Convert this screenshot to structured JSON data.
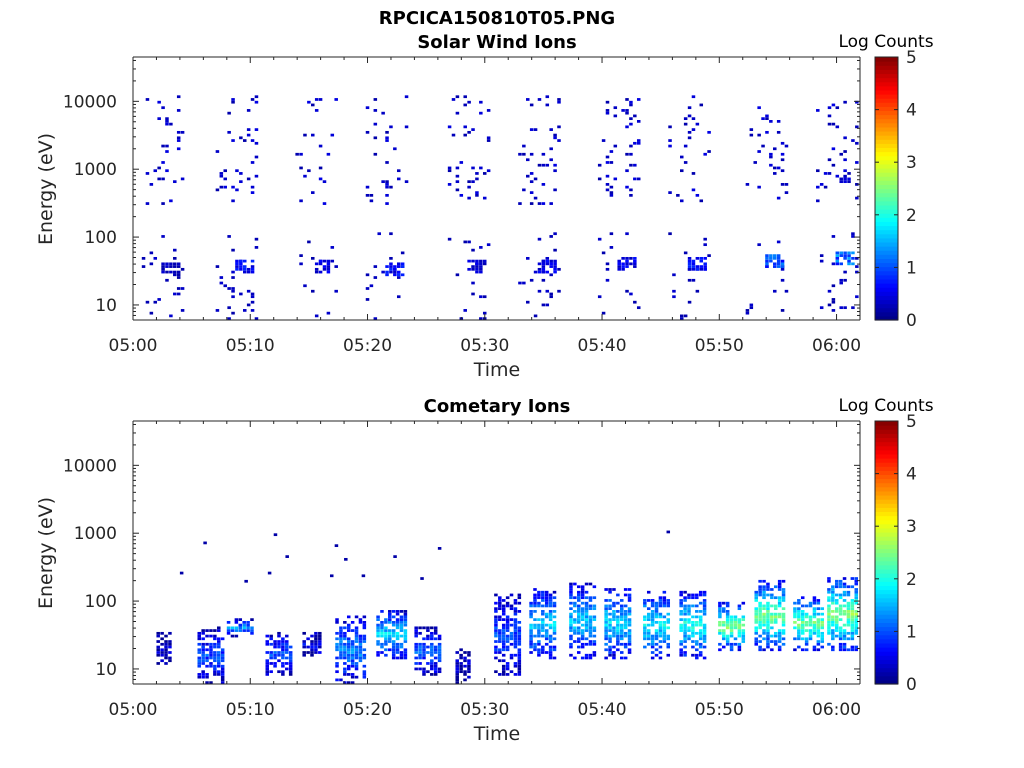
{
  "figure_title": "RPCICA150810T05.PNG",
  "chart_data": [
    {
      "type": "heatmap",
      "title": "Solar Wind Ions",
      "xlabel": "Time",
      "ylabel": "Energy (eV)",
      "x_ticks": [
        "05:00",
        "05:10",
        "05:20",
        "05:30",
        "05:40",
        "05:50",
        "06:00"
      ],
      "x_range_minutes": [
        0,
        62
      ],
      "y_scale": "log",
      "y_ticks": [
        {
          "value": 10,
          "label": "10"
        },
        {
          "value": 100,
          "label": "100"
        },
        {
          "value": 1000,
          "label": "1000"
        },
        {
          "value": 10000,
          "label": "10000"
        }
      ],
      "ylim": [
        6,
        45000
      ],
      "colorbar": {
        "label": "Log Counts",
        "range": [
          0,
          5
        ],
        "ticks": [
          "0",
          "1",
          "2",
          "3",
          "4",
          "5"
        ],
        "colormap": "jet"
      },
      "bursts": [
        {
          "t": 2.5,
          "w": 3.5,
          "e_lo": 300,
          "e_hi": 12000,
          "scatter_level": 0.2,
          "low_e": 35,
          "low_level": 0.3
        },
        {
          "t": 8.8,
          "w": 3.5,
          "e_lo": 300,
          "e_hi": 12000,
          "scatter_level": 0.2,
          "low_e": 38,
          "low_level": 0.6
        },
        {
          "t": 15.6,
          "w": 3.5,
          "e_lo": 300,
          "e_hi": 12000,
          "scatter_level": 0.2,
          "low_e": 38,
          "low_level": 0.5
        },
        {
          "t": 21.6,
          "w": 3.5,
          "e_lo": 300,
          "e_hi": 12000,
          "scatter_level": 0.2,
          "low_e": 35,
          "low_level": 0.6
        },
        {
          "t": 28.6,
          "w": 3.5,
          "e_lo": 300,
          "e_hi": 12000,
          "scatter_level": 0.2,
          "low_e": 38,
          "low_level": 0.4
        },
        {
          "t": 34.6,
          "w": 3.5,
          "e_lo": 300,
          "e_hi": 12000,
          "scatter_level": 0.2,
          "low_e": 38,
          "low_level": 0.5
        },
        {
          "t": 41.4,
          "w": 3.5,
          "e_lo": 300,
          "e_hi": 12000,
          "scatter_level": 0.2,
          "low_e": 40,
          "low_level": 0.5
        },
        {
          "t": 47.4,
          "w": 3.5,
          "e_lo": 300,
          "e_hi": 12000,
          "scatter_level": 0.2,
          "low_e": 40,
          "low_level": 0.6
        },
        {
          "t": 54.0,
          "w": 3.5,
          "e_lo": 300,
          "e_hi": 8000,
          "scatter_level": 0.2,
          "low_e": 45,
          "low_level": 1.0
        },
        {
          "t": 60.0,
          "w": 3.5,
          "e_lo": 300,
          "e_hi": 10000,
          "scatter_level": 0.2,
          "low_e": 50,
          "low_level": 1.1
        }
      ]
    },
    {
      "type": "heatmap",
      "title": "Cometary Ions",
      "xlabel": "Time",
      "ylabel": "Energy (eV)",
      "x_ticks": [
        "05:00",
        "05:10",
        "05:20",
        "05:30",
        "05:40",
        "05:50",
        "06:00"
      ],
      "x_range_minutes": [
        0,
        62
      ],
      "y_scale": "log",
      "y_ticks": [
        {
          "value": 10,
          "label": "10"
        },
        {
          "value": 100,
          "label": "100"
        },
        {
          "value": 1000,
          "label": "1000"
        },
        {
          "value": 10000,
          "label": "10000"
        }
      ],
      "ylim": [
        6,
        45000
      ],
      "colorbar": {
        "label": "Log Counts",
        "range": [
          0,
          5
        ],
        "ticks": [
          "0",
          "1",
          "2",
          "3",
          "4",
          "5"
        ],
        "colormap": "jet"
      },
      "bursts": [
        {
          "t": 2.5,
          "w": 1.0,
          "e_lo": 12,
          "e_hi": 35,
          "level": 0.3
        },
        {
          "t": 6.5,
          "w": 2.0,
          "e_lo": 6,
          "e_hi": 40,
          "level": 0.9
        },
        {
          "t": 9.0,
          "w": 2.0,
          "e_lo": 30,
          "e_hi": 55,
          "level": 1.3
        },
        {
          "t": 12.4,
          "w": 2.2,
          "e_lo": 8,
          "e_hi": 35,
          "level": 0.9
        },
        {
          "t": 15.2,
          "w": 1.5,
          "e_lo": 15,
          "e_hi": 35,
          "level": 0.5
        },
        {
          "t": 18.5,
          "w": 2.5,
          "e_lo": 6,
          "e_hi": 60,
          "level": 1.2
        },
        {
          "t": 22.0,
          "w": 2.5,
          "e_lo": 15,
          "e_hi": 70,
          "level": 1.6
        },
        {
          "t": 25.0,
          "w": 2.0,
          "e_lo": 8,
          "e_hi": 40,
          "level": 1.0
        },
        {
          "t": 28.0,
          "w": 1.0,
          "e_lo": 6,
          "e_hi": 20,
          "level": 0.3
        },
        {
          "t": 31.8,
          "w": 2.0,
          "e_lo": 8,
          "e_hi": 120,
          "level": 0.9
        },
        {
          "t": 34.8,
          "w": 2.0,
          "e_lo": 15,
          "e_hi": 150,
          "level": 1.5
        },
        {
          "t": 38.2,
          "w": 2.0,
          "e_lo": 15,
          "e_hi": 180,
          "level": 1.5
        },
        {
          "t": 41.2,
          "w": 2.0,
          "e_lo": 15,
          "e_hi": 150,
          "level": 1.6
        },
        {
          "t": 44.5,
          "w": 2.0,
          "e_lo": 15,
          "e_hi": 140,
          "level": 1.7
        },
        {
          "t": 47.6,
          "w": 2.0,
          "e_lo": 15,
          "e_hi": 130,
          "level": 1.8
        },
        {
          "t": 51.0,
          "w": 2.2,
          "e_lo": 20,
          "e_hi": 90,
          "level": 2.3
        },
        {
          "t": 54.3,
          "w": 2.6,
          "e_lo": 20,
          "e_hi": 200,
          "level": 2.2
        },
        {
          "t": 57.5,
          "w": 2.4,
          "e_lo": 20,
          "e_hi": 110,
          "level": 2.2
        },
        {
          "t": 60.4,
          "w": 2.4,
          "e_lo": 20,
          "e_hi": 220,
          "level": 2.3
        }
      ],
      "isolated_points": [
        {
          "t": 4.0,
          "e": 270
        },
        {
          "t": 6.0,
          "e": 750
        },
        {
          "t": 9.5,
          "e": 190
        },
        {
          "t": 11.5,
          "e": 270
        },
        {
          "t": 12.0,
          "e": 950
        },
        {
          "t": 13.0,
          "e": 440
        },
        {
          "t": 17.2,
          "e": 640
        },
        {
          "t": 16.8,
          "e": 230
        },
        {
          "t": 18.0,
          "e": 400
        },
        {
          "t": 19.5,
          "e": 240
        },
        {
          "t": 22.2,
          "e": 440
        },
        {
          "t": 24.5,
          "e": 220
        },
        {
          "t": 26.0,
          "e": 590
        },
        {
          "t": 45.5,
          "e": 1050
        }
      ]
    }
  ]
}
